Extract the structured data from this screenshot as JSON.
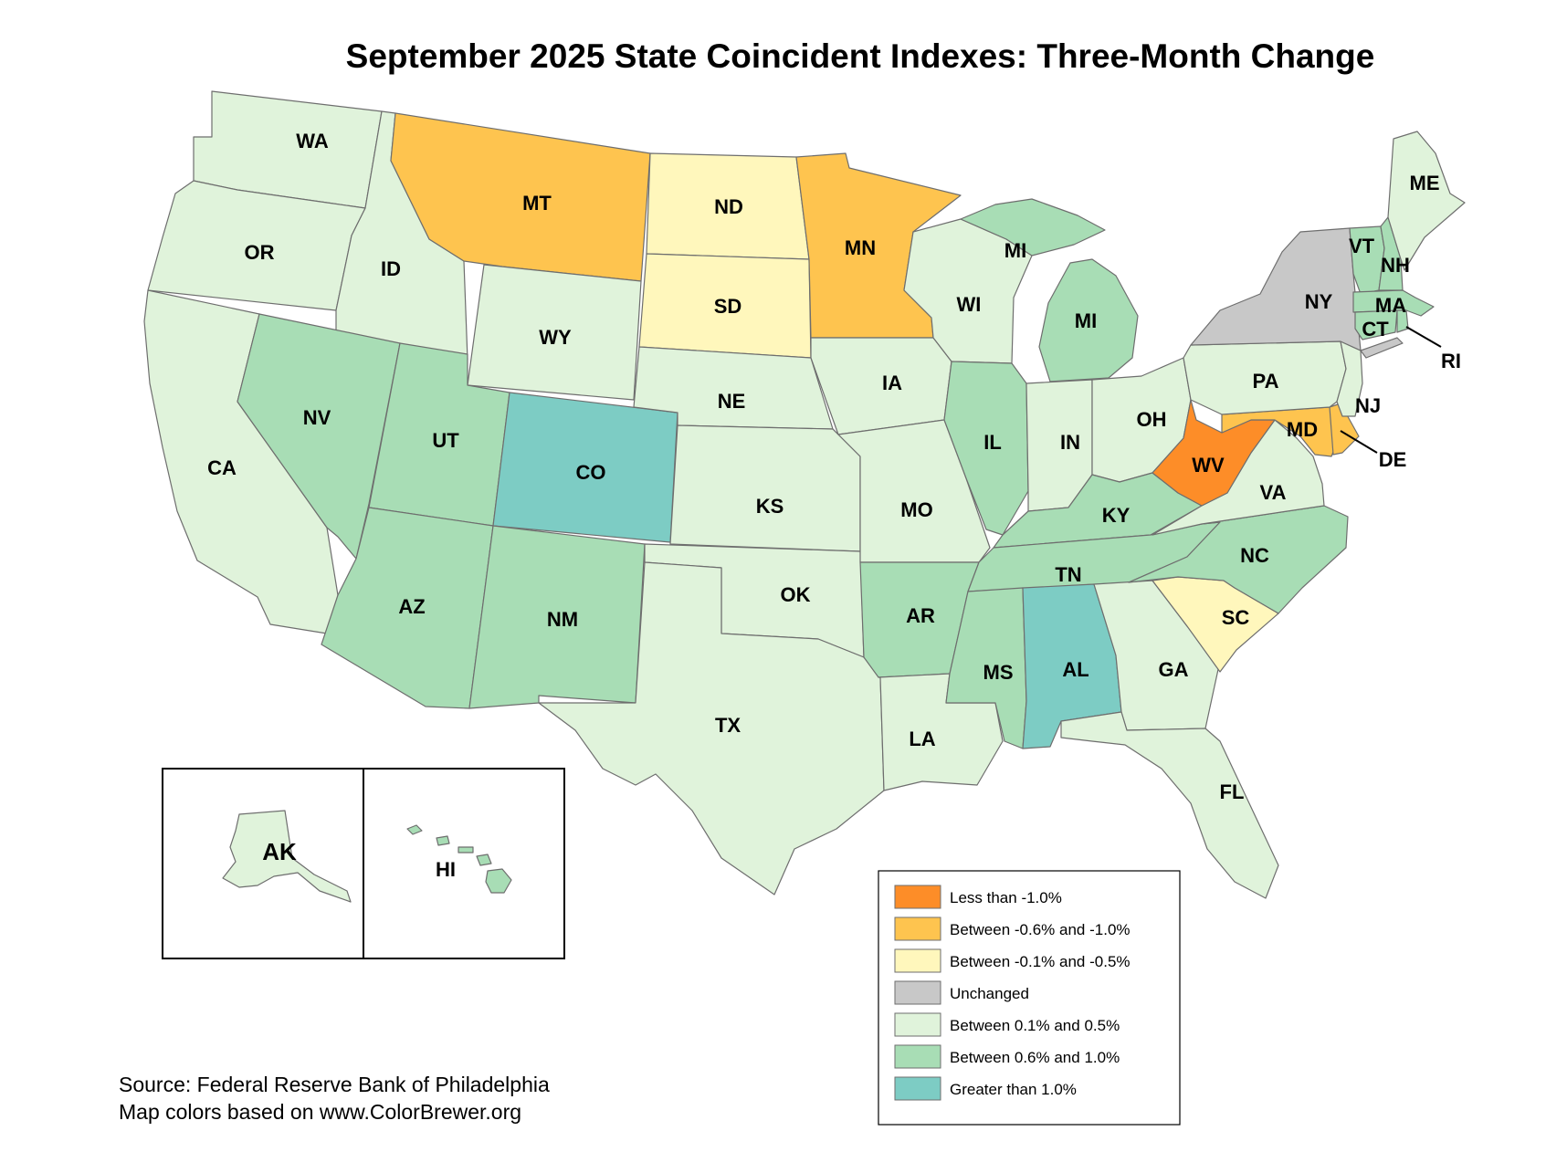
{
  "title": "September 2025 State Coincident Indexes: Three-Month Change",
  "source": {
    "line1": "Source: Federal Reserve Bank of Philadelphia",
    "line2": "Map colors based on www.ColorBrewer.org"
  },
  "legend": [
    {
      "label": "Less than -1.0%",
      "color": "#fd8d28"
    },
    {
      "label": "Between -0.6% and -1.0%",
      "color": "#fec44f"
    },
    {
      "label": "Between -0.1% and -0.5%",
      "color": "#fff7bc"
    },
    {
      "label": "Unchanged",
      "color": "#c8c8c8"
    },
    {
      "label": "Between 0.1% and 0.5%",
      "color": "#e0f3db"
    },
    {
      "label": "Between 0.6% and 1.0%",
      "color": "#a8ddb5"
    },
    {
      "label": "Greater than 1.0%",
      "color": "#7dccc4"
    }
  ],
  "states": {
    "WA": {
      "label": "WA",
      "category": 4
    },
    "OR": {
      "label": "OR",
      "category": 4
    },
    "CA": {
      "label": "CA",
      "category": 4
    },
    "ID": {
      "label": "ID",
      "category": 4
    },
    "NV": {
      "label": "NV",
      "category": 5
    },
    "MT": {
      "label": "MT",
      "category": 1
    },
    "WY": {
      "label": "WY",
      "category": 4
    },
    "UT": {
      "label": "UT",
      "category": 5
    },
    "AZ": {
      "label": "AZ",
      "category": 5
    },
    "CO": {
      "label": "CO",
      "category": 6
    },
    "NM": {
      "label": "NM",
      "category": 5
    },
    "ND": {
      "label": "ND",
      "category": 2
    },
    "SD": {
      "label": "SD",
      "category": 2
    },
    "NE": {
      "label": "NE",
      "category": 4
    },
    "KS": {
      "label": "KS",
      "category": 4
    },
    "OK": {
      "label": "OK",
      "category": 4
    },
    "TX": {
      "label": "TX",
      "category": 4
    },
    "MN": {
      "label": "MN",
      "category": 1
    },
    "IA": {
      "label": "IA",
      "category": 4
    },
    "MO": {
      "label": "MO",
      "category": 4
    },
    "AR": {
      "label": "AR",
      "category": 5
    },
    "LA": {
      "label": "LA",
      "category": 4
    },
    "WI": {
      "label": "WI",
      "category": 4
    },
    "IL": {
      "label": "IL",
      "category": 5
    },
    "MI": {
      "label": "MI",
      "category": 5
    },
    "MIUP": {
      "label": "MI",
      "category": 5
    },
    "IN": {
      "label": "IN",
      "category": 4
    },
    "OH": {
      "label": "OH",
      "category": 4
    },
    "KY": {
      "label": "KY",
      "category": 5
    },
    "TN": {
      "label": "TN",
      "category": 5
    },
    "MS": {
      "label": "MS",
      "category": 5
    },
    "AL": {
      "label": "AL",
      "category": 6
    },
    "GA": {
      "label": "GA",
      "category": 4
    },
    "FL": {
      "label": "FL",
      "category": 4
    },
    "SC": {
      "label": "SC",
      "category": 2
    },
    "NC": {
      "label": "NC",
      "category": 5
    },
    "VA": {
      "label": "VA",
      "category": 4
    },
    "WV": {
      "label": "WV",
      "category": 0
    },
    "MD": {
      "label": "MD",
      "category": 1
    },
    "DE": {
      "label": "DE",
      "category": 1
    },
    "NJ": {
      "label": "NJ",
      "category": 4
    },
    "PA": {
      "label": "PA",
      "category": 4
    },
    "NY": {
      "label": "NY",
      "category": 3
    },
    "CT": {
      "label": "CT",
      "category": 5
    },
    "RI": {
      "label": "RI",
      "category": 5
    },
    "MA": {
      "label": "MA",
      "category": 5
    },
    "VT": {
      "label": "VT",
      "category": 5
    },
    "NH": {
      "label": "NH",
      "category": 5
    },
    "ME": {
      "label": "ME",
      "category": 4
    },
    "AK": {
      "label": "AK",
      "category": 4
    },
    "HI": {
      "label": "HI",
      "category": 5
    }
  }
}
